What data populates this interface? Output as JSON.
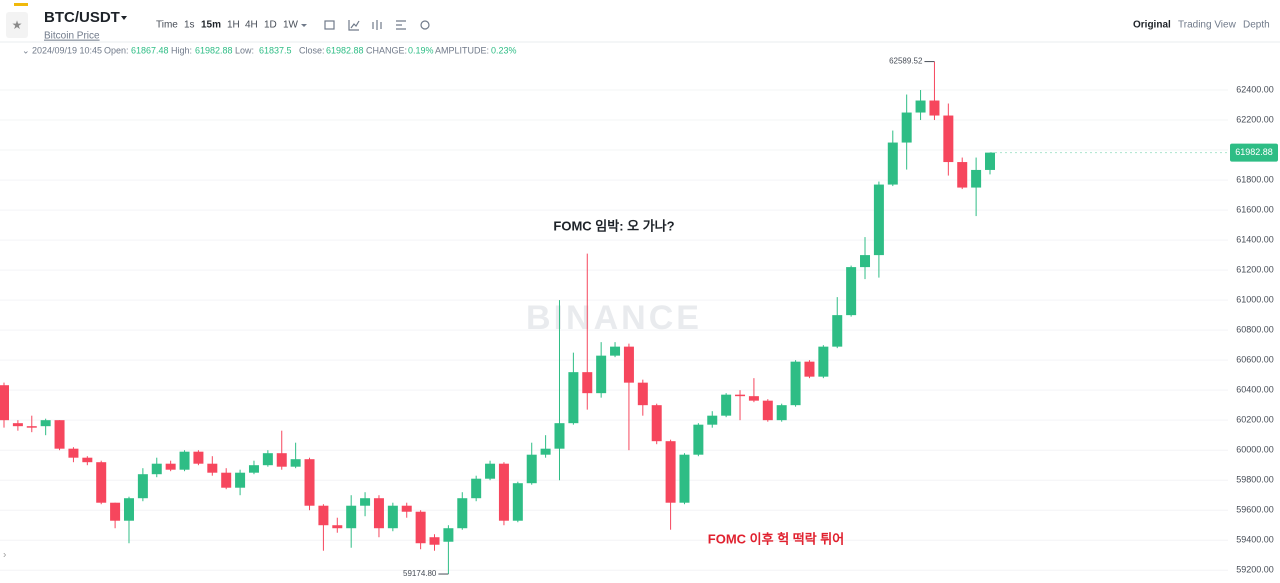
{
  "header": {
    "symbol": "BTC/USDT",
    "subtitle": "Bitcoin Price",
    "intervals": [
      "Time",
      "1s",
      "15m",
      "1H",
      "4H",
      "1D",
      "1W"
    ],
    "views": [
      "Original",
      "Trading View",
      "Depth"
    ]
  },
  "info": {
    "time": "2024/09/19 10:45",
    "open_label": "Open:",
    "high_label": "High:",
    "low_label": "Low:",
    "close_label": "Close:",
    "change_label": "CHANGE:",
    "change": "0.19%",
    "amplitude_label": "AMPLITUDE:",
    "amplitude": "0.23%"
  },
  "chart_data": {
    "type": "candlestick",
    "watermark": "BINANCE",
    "up_color": "#2ebd85",
    "down_color": "#f6465d",
    "annotations": [
      "FOMC 임박: 오 가나?",
      "FOMC 이후 헉 떡락 튀어"
    ],
    "max_label": "62589.52",
    "min_label": "59174.80",
    "ylim": [
      59115,
      62720
    ],
    "yticks": [
      {
        "value": 59200,
        "label": "59200.00"
      },
      {
        "value": 59400,
        "label": "59400.00"
      },
      {
        "value": 59600,
        "label": "59600.00"
      },
      {
        "value": 59800,
        "label": "59800.00"
      },
      {
        "value": 60000,
        "label": "60000.00"
      },
      {
        "value": 60200,
        "label": "60200.00"
      },
      {
        "value": 60400,
        "label": "60400.00"
      },
      {
        "value": 60600,
        "label": "60600.00"
      },
      {
        "value": 60800,
        "label": "60800.00"
      },
      {
        "value": 61000,
        "label": "61000.00"
      },
      {
        "value": 61200,
        "label": "61200.00"
      },
      {
        "value": 61400,
        "label": "61400.00"
      },
      {
        "value": 61600,
        "label": "61600.00"
      },
      {
        "value": 61800,
        "label": "61800.00"
      },
      {
        "value": 62000,
        "label": "62000.00"
      },
      {
        "value": 62200,
        "label": "62200.00"
      },
      {
        "value": 62400,
        "label": "62400.00"
      }
    ],
    "grid": true,
    "open": [
      60433,
      60180,
      60160,
      60160,
      60200,
      60010,
      59950,
      59920,
      59650,
      59530,
      59680,
      59840,
      59910,
      59870,
      59990,
      59910,
      59850,
      59750,
      59850,
      59900,
      59980,
      59890,
      59940,
      59630,
      59500,
      59480,
      59630,
      59680,
      59480,
      59630,
      59590,
      59420,
      59390,
      59480,
      59680,
      59810,
      59910,
      59530,
      59780,
      59970,
      60010,
      60180,
      60520,
      60380,
      60630,
      60690,
      60450,
      60300,
      60060,
      59650,
      59970,
      60170,
      60230,
      60370,
      60360,
      60330,
      60200,
      60300,
      60590,
      60490,
      60690,
      60900,
      61220,
      61300,
      61770,
      62050,
      62250,
      62330,
      62230,
      61920,
      61750,
      61867.48
    ],
    "high": [
      60450,
      60200,
      60230,
      60210,
      60200,
      60020,
      59960,
      59930,
      59650,
      59690,
      59880,
      59950,
      59930,
      60000,
      60000,
      59960,
      59880,
      59870,
      59930,
      60000,
      60130,
      60050,
      59950,
      59640,
      59550,
      59700,
      59720,
      59700,
      59650,
      59650,
      59600,
      59440,
      59500,
      59720,
      59830,
      59930,
      59920,
      59790,
      60050,
      60100,
      61000,
      60650,
      61310,
      60720,
      60720,
      60710,
      60470,
      60310,
      60070,
      59980,
      60180,
      60260,
      60380,
      60400,
      60480,
      60340,
      60310,
      60600,
      60600,
      60700,
      61020,
      61230,
      61420,
      61790,
      62130,
      62370,
      62400,
      62589.52,
      62310,
      61950,
      61950,
      61982.88
    ],
    "low": [
      60150,
      60130,
      60120,
      60100,
      60000,
      59920,
      59900,
      59640,
      59480,
      59380,
      59660,
      59820,
      59860,
      59860,
      59900,
      59830,
      59740,
      59700,
      59840,
      59890,
      59870,
      59880,
      59600,
      59330,
      59450,
      59350,
      59560,
      59420,
      59460,
      59550,
      59340,
      59330,
      59174.8,
      59470,
      59660,
      59800,
      59500,
      59520,
      59770,
      59950,
      59800,
      60170,
      60270,
      60350,
      60620,
      60000,
      60230,
      60040,
      59470,
      59640,
      59960,
      60150,
      60220,
      60200,
      60320,
      60190,
      60190,
      60290,
      60480,
      60480,
      60680,
      60890,
      61140,
      61150,
      61760,
      61870,
      62200,
      62200,
      61830,
      61740,
      61560,
      61837.5
    ],
    "close": [
      60200,
      60160,
      60150,
      60200,
      60010,
      59950,
      59920,
      59650,
      59530,
      59680,
      59840,
      59910,
      59870,
      59990,
      59910,
      59850,
      59750,
      59850,
      59900,
      59980,
      59890,
      59940,
      59630,
      59500,
      59480,
      59630,
      59680,
      59480,
      59630,
      59590,
      59380,
      59370,
      59480,
      59680,
      59810,
      59910,
      59530,
      59780,
      59970,
      60010,
      60180,
      60520,
      60380,
      60630,
      60690,
      60450,
      60300,
      60060,
      59650,
      59970,
      60170,
      60230,
      60370,
      60360,
      60330,
      60200,
      60300,
      60590,
      60490,
      60690,
      60900,
      61220,
      61300,
      61770,
      62050,
      62250,
      62330,
      62230,
      61920,
      61750,
      61867.48,
      61982.88
    ]
  }
}
